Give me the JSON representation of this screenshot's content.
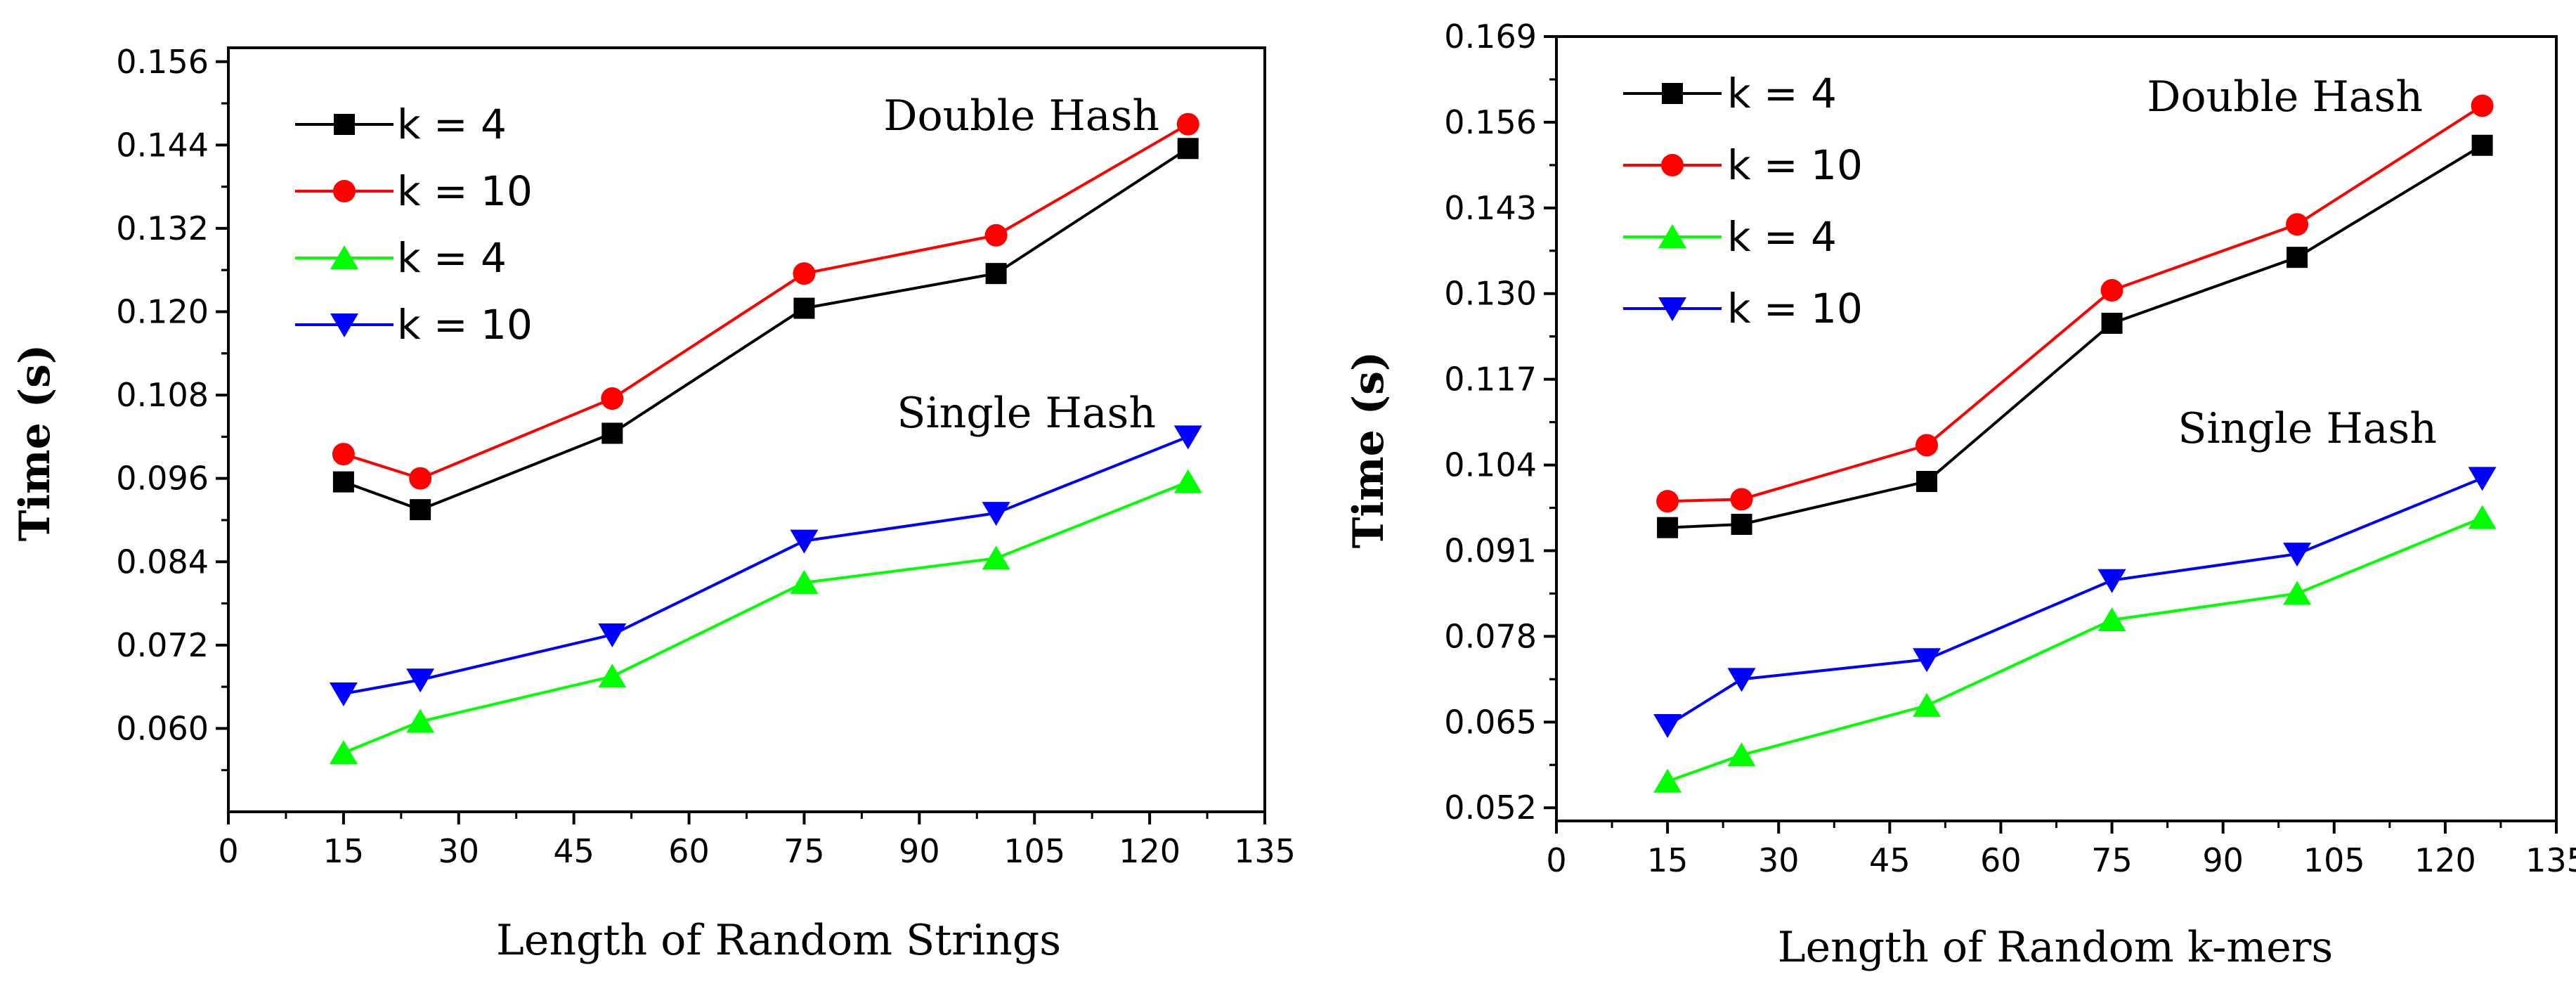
{
  "chart_data": [
    {
      "type": "line",
      "xlabel": "Length of Random Strings",
      "ylabel": "Time (s)",
      "xlim": [
        0,
        135
      ],
      "ylim": [
        0.048,
        0.158
      ],
      "xticks": [
        "0",
        "15",
        "30",
        "45",
        "60",
        "75",
        "90",
        "105",
        "120",
        "135"
      ],
      "yticks": [
        "0.060",
        "0.072",
        "0.084",
        "0.096",
        "0.108",
        "0.120",
        "0.132",
        "0.144",
        "0.156"
      ],
      "x": [
        15,
        25,
        50,
        75,
        100,
        125
      ],
      "series": [
        {
          "name": "k = 4",
          "color": "#000000",
          "marker": "square",
          "values": [
            0.0955,
            0.0915,
            0.1025,
            0.1205,
            0.1255,
            0.1435
          ]
        },
        {
          "name": "k = 10",
          "color": "#ff0000",
          "marker": "circle",
          "values": [
            0.0995,
            0.096,
            0.1075,
            0.1255,
            0.131,
            0.147
          ]
        },
        {
          "name": "k = 4",
          "color": "#00ff00",
          "marker": "triangle-up",
          "values": [
            0.0565,
            0.061,
            0.0675,
            0.081,
            0.0845,
            0.0955
          ]
        },
        {
          "name": "k = 10",
          "color": "#0000ff",
          "marker": "triangle-down",
          "values": [
            0.065,
            0.067,
            0.0735,
            0.087,
            0.091,
            0.102
          ]
        }
      ],
      "annotations": [
        "Double Hash",
        "Single Hash"
      ],
      "legend": "top-left"
    },
    {
      "type": "line",
      "xlabel": "Length of Random k-mers",
      "ylabel": "Time (s)",
      "xlim": [
        0,
        135
      ],
      "ylim": [
        0.05,
        0.169
      ],
      "xticks": [
        "0",
        "15",
        "30",
        "45",
        "60",
        "75",
        "90",
        "105",
        "120",
        "135"
      ],
      "yticks": [
        "0.052",
        "0.065",
        "0.078",
        "0.091",
        "0.104",
        "0.117",
        "0.130",
        "0.143",
        "0.156",
        "0.169"
      ],
      "x": [
        15,
        25,
        50,
        75,
        100,
        125
      ],
      "series": [
        {
          "name": "k = 4",
          "color": "#000000",
          "marker": "square",
          "values": [
            0.0945,
            0.095,
            0.1015,
            0.1255,
            0.1355,
            0.1525
          ]
        },
        {
          "name": "k = 10",
          "color": "#ff0000",
          "marker": "circle",
          "values": [
            0.0985,
            0.0988,
            0.107,
            0.1305,
            0.1405,
            0.1585
          ]
        },
        {
          "name": "k = 4",
          "color": "#00ff00",
          "marker": "triangle-up",
          "values": [
            0.056,
            0.06,
            0.0675,
            0.0805,
            0.0845,
            0.096
          ]
        },
        {
          "name": "k = 10",
          "color": "#0000ff",
          "marker": "triangle-down",
          "values": [
            0.0645,
            0.0715,
            0.0745,
            0.0865,
            0.0905,
            0.102
          ]
        }
      ],
      "annotations": [
        "Double Hash",
        "Single Hash"
      ],
      "legend": "top-left"
    }
  ]
}
